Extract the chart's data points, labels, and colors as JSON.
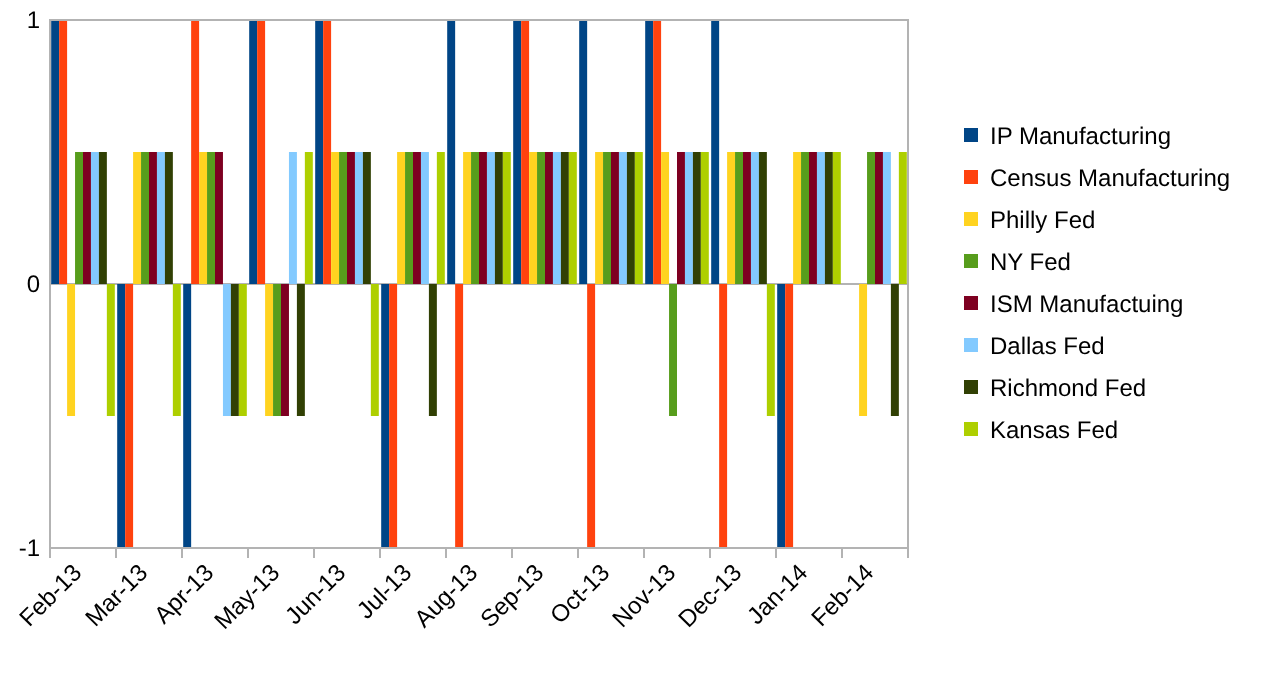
{
  "chart_data": {
    "type": "bar",
    "categories": [
      "Feb-13",
      "Mar-13",
      "Apr-13",
      "May-13",
      "Jun-13",
      "Jul-13",
      "Aug-13",
      "Sep-13",
      "Oct-13",
      "Nov-13",
      "Dec-13",
      "Jan-14",
      "Feb-14"
    ],
    "series": [
      {
        "name": "IP Manufacturing",
        "color": "#004586",
        "values": [
          1,
          -1,
          -1,
          1,
          1,
          -1,
          1,
          1,
          1,
          1,
          1,
          -1,
          null
        ]
      },
      {
        "name": "Census Manufacturing",
        "color": "#ff420e",
        "values": [
          1,
          -1,
          1,
          1,
          1,
          -1,
          -1,
          1,
          -1,
          1,
          -1,
          -1,
          null
        ]
      },
      {
        "name": "Philly Fed",
        "color": "#ffd320",
        "values": [
          -0.5,
          0.5,
          0.5,
          -0.5,
          0.5,
          0.5,
          0.5,
          0.5,
          0.5,
          0.5,
          0.5,
          0.5,
          -0.5
        ]
      },
      {
        "name": "NY Fed",
        "color": "#579d1c",
        "values": [
          0.5,
          0.5,
          0.5,
          -0.5,
          0.5,
          0.5,
          0.5,
          0.5,
          0.5,
          -0.5,
          0.5,
          0.5,
          0.5
        ]
      },
      {
        "name": "ISM Manufactuing",
        "color": "#7e0021",
        "values": [
          0.5,
          0.5,
          0.5,
          -0.5,
          0.5,
          0.5,
          0.5,
          0.5,
          0.5,
          0.5,
          0.5,
          0.5,
          0.5
        ]
      },
      {
        "name": "Dallas Fed",
        "color": "#83caff",
        "values": [
          0.5,
          0.5,
          -0.5,
          0.5,
          0.5,
          0.5,
          0.5,
          0.5,
          0.5,
          0.5,
          0.5,
          0.5,
          0.5
        ]
      },
      {
        "name": "Richmond Fed",
        "color": "#314004",
        "values": [
          0.5,
          0.5,
          -0.5,
          -0.5,
          0.5,
          -0.5,
          0.5,
          0.5,
          0.5,
          0.5,
          0.5,
          0.5,
          -0.5
        ]
      },
      {
        "name": "Kansas Fed",
        "color": "#aecf00",
        "values": [
          -0.5,
          -0.5,
          -0.5,
          0.5,
          -0.5,
          0.5,
          0.5,
          0.5,
          0.5,
          0.5,
          -0.5,
          0.5,
          0.5
        ]
      }
    ],
    "ylim": [
      -1,
      1
    ],
    "yticks": [
      -1,
      0,
      1
    ],
    "grid": "y",
    "legend": "right"
  }
}
